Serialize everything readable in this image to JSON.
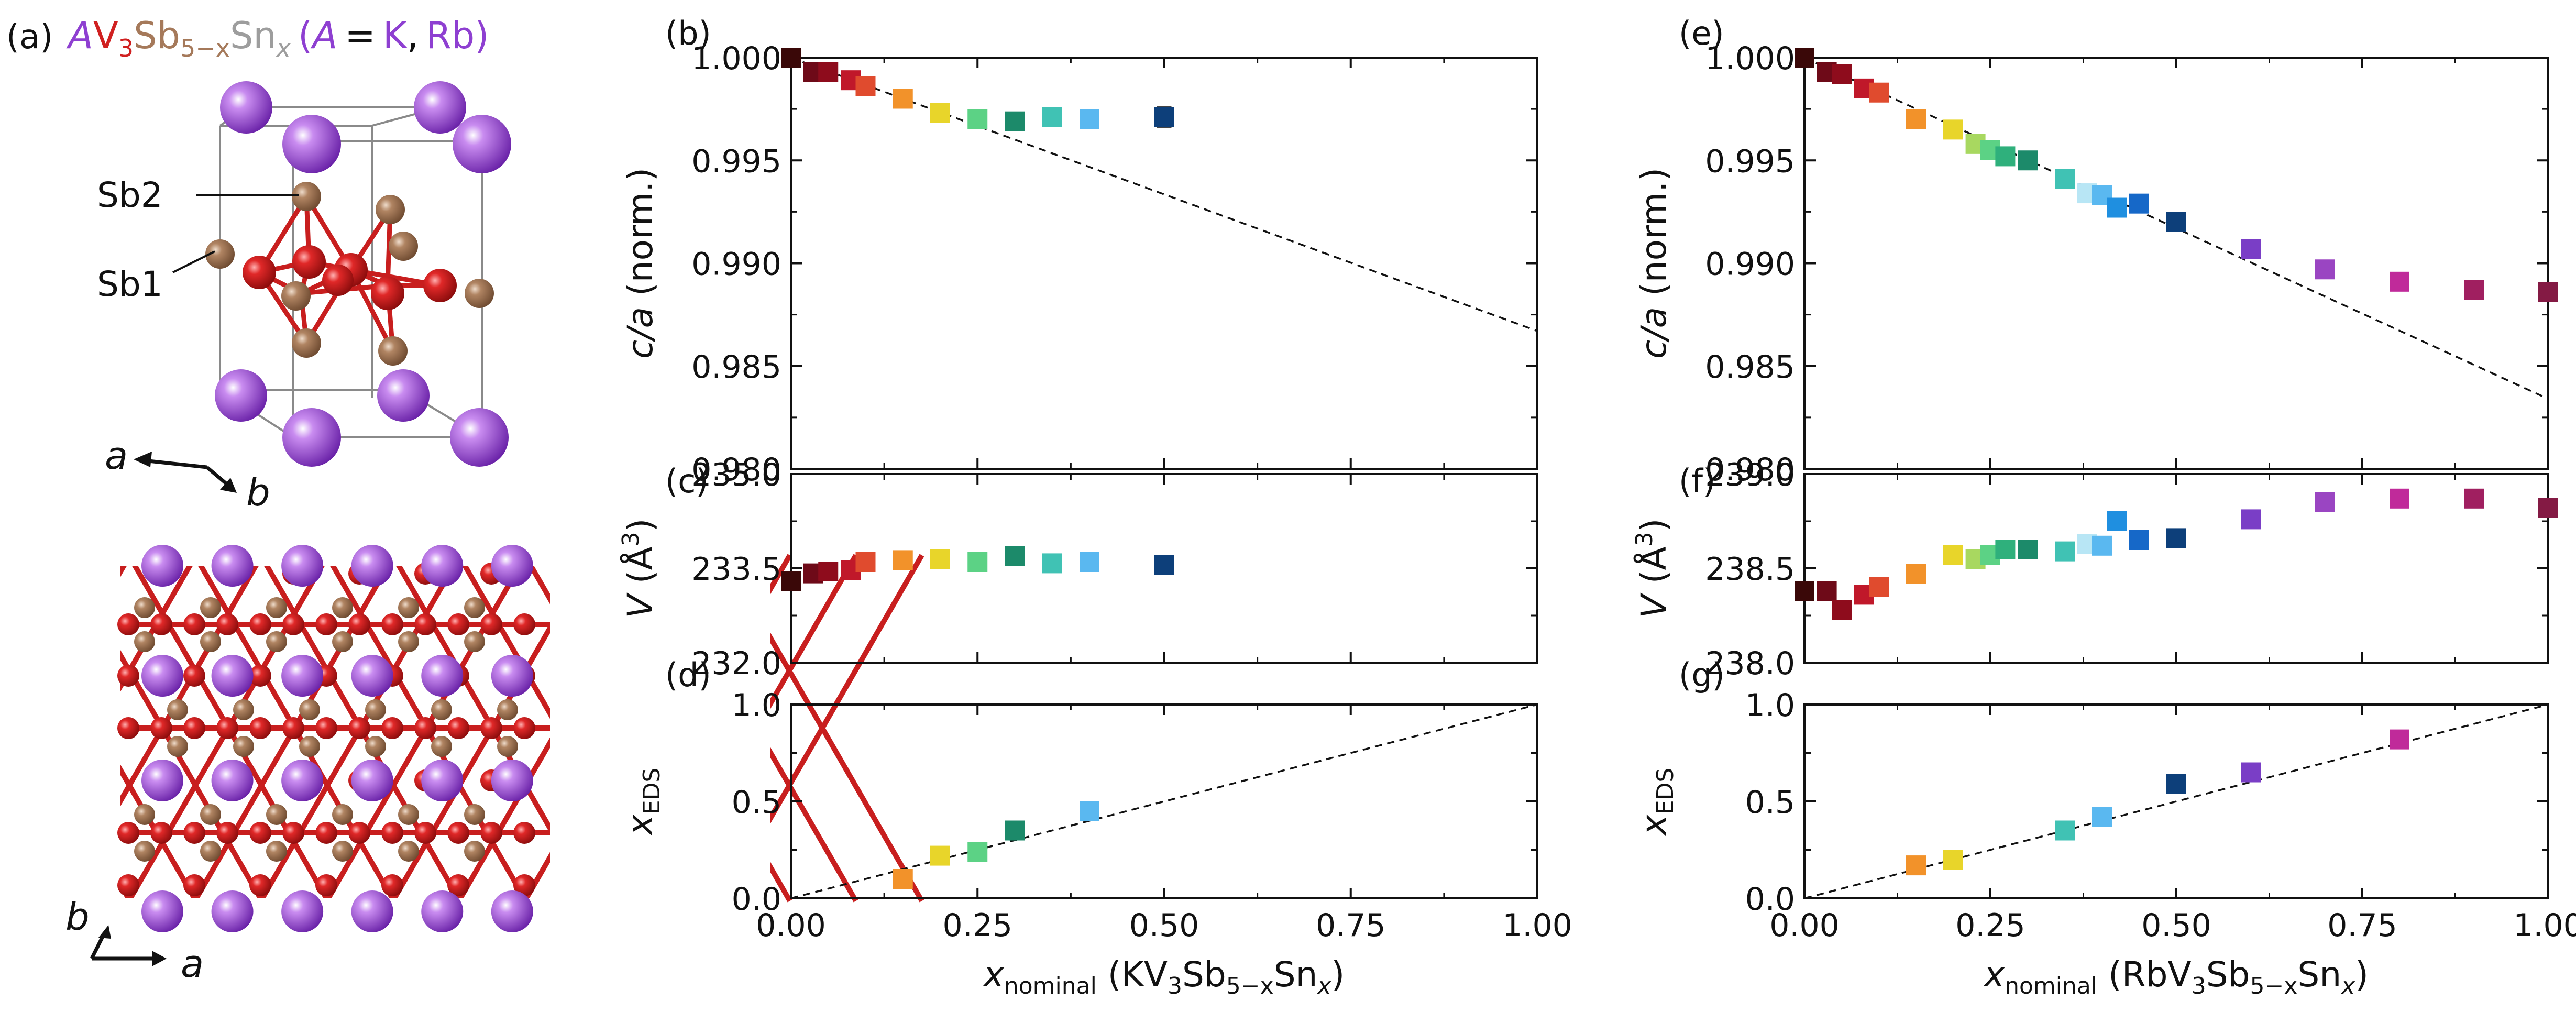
{
  "figure": {
    "colors": {
      "A": "#8e3fd1",
      "V": "#d02020",
      "Sb": "#a5795a",
      "Sn": "#9d9d9d",
      "ink": "#111111"
    },
    "crystal": {
      "panel_label": "(a)",
      "formula": {
        "A": "A",
        "V": "V",
        "v_sub": "3",
        "Sb": "Sb",
        "sb_sub": "5−x",
        "Sn": "Sn",
        "sn_sub": "x",
        "open": "(",
        "a_paren": "A",
        "eq": "=",
        "K": "K",
        "comma": ",",
        "Rb": "Rb",
        "close": ")"
      },
      "site_labels": [
        "Sb2",
        "Sb1"
      ],
      "axes_3d": [
        "a",
        "b"
      ],
      "axes_2d": [
        "b",
        "a"
      ]
    }
  },
  "chart_data": [
    {
      "id": "b",
      "panel_label": "(b)",
      "type": "scatter",
      "ylabel": "c/a (norm.)",
      "xlim": [
        0,
        1.0
      ],
      "ylim": [
        0.98,
        1.0
      ],
      "yticks": [
        "1.000",
        "0.995",
        "0.990",
        "0.985",
        "0.980"
      ],
      "ytick_values": [
        1.0,
        0.995,
        0.99,
        0.985,
        0.98
      ],
      "points": [
        {
          "x": 0.0,
          "y": 1.0,
          "err": 0.0002,
          "color": "#3a0808"
        },
        {
          "x": 0.03,
          "y": 0.9993,
          "err": 0.0003,
          "color": "#6e0a18"
        },
        {
          "x": 0.05,
          "y": 0.9993,
          "err": 0.0003,
          "color": "#8e0c1c"
        },
        {
          "x": 0.08,
          "y": 0.9989,
          "err": 0.0003,
          "color": "#c0182a"
        },
        {
          "x": 0.1,
          "y": 0.9986,
          "err": 0.0003,
          "color": "#e04b2e"
        },
        {
          "x": 0.15,
          "y": 0.998,
          "err": 0.0003,
          "color": "#f2922a"
        },
        {
          "x": 0.2,
          "y": 0.9973,
          "err": 0.0003,
          "color": "#e8d52a"
        },
        {
          "x": 0.25,
          "y": 0.997,
          "err": 0.0003,
          "color": "#5cd285"
        },
        {
          "x": 0.3,
          "y": 0.9969,
          "err": 0.0003,
          "color": "#1c8a6a"
        },
        {
          "x": 0.35,
          "y": 0.9971,
          "err": 0.0004,
          "color": "#40c2b4"
        },
        {
          "x": 0.4,
          "y": 0.997,
          "err": 0.0004,
          "color": "#5ab8f0"
        },
        {
          "x": 0.5,
          "y": 0.9971,
          "err": 0.0005,
          "color": "#0d3f7a"
        }
      ],
      "guide_line": {
        "x0": 0.0,
        "y0": 1.0,
        "x1": 1.0,
        "y1": 0.9867
      }
    },
    {
      "id": "c",
      "panel_label": "(c)",
      "type": "scatter",
      "ylabel": "V (Å³)",
      "ylabel_main": "V",
      "ylabel_unit": " (Å",
      "ylabel_sup": "3",
      "ylabel_close": ")",
      "xlim": [
        0,
        1.0
      ],
      "ylim": [
        232.0,
        235.0
      ],
      "yticks": [
        "235.0",
        "233.5",
        "232.0"
      ],
      "ytick_values": [
        235.0,
        233.5,
        232.0
      ],
      "points": [
        {
          "x": 0.0,
          "y": 233.3,
          "color": "#3a0808"
        },
        {
          "x": 0.03,
          "y": 233.42,
          "color": "#6e0a18"
        },
        {
          "x": 0.05,
          "y": 233.45,
          "color": "#8e0c1c"
        },
        {
          "x": 0.08,
          "y": 233.47,
          "color": "#c0182a"
        },
        {
          "x": 0.1,
          "y": 233.6,
          "color": "#e04b2e"
        },
        {
          "x": 0.15,
          "y": 233.63,
          "color": "#f2922a"
        },
        {
          "x": 0.2,
          "y": 233.65,
          "color": "#e8d52a"
        },
        {
          "x": 0.25,
          "y": 233.6,
          "color": "#5cd285"
        },
        {
          "x": 0.3,
          "y": 233.7,
          "color": "#1c8a6a"
        },
        {
          "x": 0.35,
          "y": 233.58,
          "color": "#40c2b4"
        },
        {
          "x": 0.4,
          "y": 233.6,
          "color": "#5ab8f0"
        },
        {
          "x": 0.5,
          "y": 233.55,
          "color": "#0d3f7a"
        }
      ]
    },
    {
      "id": "d",
      "panel_label": "(d)",
      "type": "scatter",
      "ylabel": "x_EDS",
      "ylabel_main": "x",
      "ylabel_sub": "EDS",
      "xlim": [
        0,
        1.0
      ],
      "ylim": [
        0,
        1.0
      ],
      "yticks": [
        "1.0",
        "0.5",
        "0.0"
      ],
      "ytick_values": [
        1.0,
        0.5,
        0.0
      ],
      "xticks": [
        "0.00",
        "0.25",
        "0.50",
        "0.75",
        "1.00"
      ],
      "xtick_values": [
        0.0,
        0.25,
        0.5,
        0.75,
        1.0
      ],
      "xlabel_main": "x",
      "xlabel_sub": "nominal",
      "xlabel_compound": "(KV",
      "xlabel_sub3": "3",
      "xlabel_sb": "Sb",
      "xlabel_sub5": "5−x",
      "xlabel_sn": "Sn",
      "xlabel_subx": "x",
      "xlabel_close": ")",
      "points": [
        {
          "x": 0.15,
          "y": 0.1,
          "color": "#f2922a"
        },
        {
          "x": 0.2,
          "y": 0.22,
          "color": "#e8d52a"
        },
        {
          "x": 0.25,
          "y": 0.24,
          "color": "#5cd285"
        },
        {
          "x": 0.3,
          "y": 0.35,
          "color": "#1c8a6a"
        },
        {
          "x": 0.4,
          "y": 0.45,
          "color": "#5ab8f0"
        }
      ],
      "guide_line": {
        "x0": 0.0,
        "y0": 0.0,
        "x1": 1.0,
        "y1": 1.0
      }
    },
    {
      "id": "e",
      "panel_label": "(e)",
      "type": "scatter",
      "ylabel": "c/a (norm.)",
      "xlim": [
        0,
        1.0
      ],
      "ylim": [
        0.98,
        1.0
      ],
      "yticks": [
        "1.000",
        "0.995",
        "0.990",
        "0.985",
        "0.980"
      ],
      "ytick_values": [
        1.0,
        0.995,
        0.99,
        0.985,
        0.98
      ],
      "points": [
        {
          "x": 0.0,
          "y": 1.0,
          "err": 0.0002,
          "color": "#3a0808"
        },
        {
          "x": 0.03,
          "y": 0.9993,
          "err": 0.0003,
          "color": "#6e0a18"
        },
        {
          "x": 0.05,
          "y": 0.9992,
          "err": 0.0003,
          "color": "#8e0c1c"
        },
        {
          "x": 0.08,
          "y": 0.9985,
          "err": 0.0003,
          "color": "#c0182a"
        },
        {
          "x": 0.1,
          "y": 0.9983,
          "err": 0.0003,
          "color": "#e04b2e"
        },
        {
          "x": 0.15,
          "y": 0.997,
          "err": 0.0003,
          "color": "#f2922a"
        },
        {
          "x": 0.2,
          "y": 0.9965,
          "err": 0.0003,
          "color": "#e8d52a"
        },
        {
          "x": 0.23,
          "y": 0.9958,
          "err": 0.0003,
          "color": "#a8d860"
        },
        {
          "x": 0.25,
          "y": 0.9955,
          "err": 0.0003,
          "color": "#5cd285"
        },
        {
          "x": 0.27,
          "y": 0.9952,
          "err": 0.0003,
          "color": "#2fb07c"
        },
        {
          "x": 0.3,
          "y": 0.995,
          "err": 0.0003,
          "color": "#1c8a6a"
        },
        {
          "x": 0.35,
          "y": 0.9941,
          "err": 0.0003,
          "color": "#40c2b4"
        },
        {
          "x": 0.38,
          "y": 0.9934,
          "err": 0.0003,
          "color": "#b8e6f5"
        },
        {
          "x": 0.4,
          "y": 0.9933,
          "err": 0.0003,
          "color": "#5ab8f0"
        },
        {
          "x": 0.42,
          "y": 0.9927,
          "err": 0.0003,
          "color": "#1f8fe0"
        },
        {
          "x": 0.45,
          "y": 0.9929,
          "err": 0.0003,
          "color": "#1668c8"
        },
        {
          "x": 0.5,
          "y": 0.992,
          "err": 0.0003,
          "color": "#0d3f7a"
        },
        {
          "x": 0.6,
          "y": 0.9907,
          "err": 0.0003,
          "color": "#7a3ec6"
        },
        {
          "x": 0.7,
          "y": 0.9897,
          "err": 0.0003,
          "color": "#9a45c2"
        },
        {
          "x": 0.8,
          "y": 0.9891,
          "err": 0.0003,
          "color": "#c02a9a"
        },
        {
          "x": 0.9,
          "y": 0.9887,
          "err": 0.0004,
          "color": "#a01f60"
        },
        {
          "x": 1.0,
          "y": 0.9886,
          "err": 0.0004,
          "color": "#841a44"
        }
      ],
      "guide_line": {
        "x0": 0.0,
        "y0": 1.0,
        "x1": 1.0,
        "y1": 0.9834
      }
    },
    {
      "id": "f",
      "panel_label": "(f)",
      "type": "scatter",
      "ylabel": "V (Å³)",
      "ylabel_main": "V",
      "ylabel_unit": " (Å",
      "ylabel_sup": "3",
      "ylabel_close": ")",
      "xlim": [
        0,
        1.0
      ],
      "ylim": [
        238.0,
        239.0
      ],
      "yticks": [
        "239.0",
        "238.5",
        "238.0"
      ],
      "ytick_values": [
        239.0,
        238.5,
        238.0
      ],
      "points": [
        {
          "x": 0.0,
          "y": 238.38,
          "color": "#3a0808"
        },
        {
          "x": 0.03,
          "y": 238.38,
          "color": "#6e0a18"
        },
        {
          "x": 0.05,
          "y": 238.28,
          "color": "#8e0c1c"
        },
        {
          "x": 0.08,
          "y": 238.36,
          "color": "#c0182a"
        },
        {
          "x": 0.1,
          "y": 238.4,
          "color": "#e04b2e"
        },
        {
          "x": 0.15,
          "y": 238.47,
          "color": "#f2922a"
        },
        {
          "x": 0.2,
          "y": 238.57,
          "color": "#e8d52a"
        },
        {
          "x": 0.23,
          "y": 238.55,
          "color": "#a8d860"
        },
        {
          "x": 0.25,
          "y": 238.57,
          "color": "#5cd285"
        },
        {
          "x": 0.27,
          "y": 238.6,
          "color": "#2fb07c"
        },
        {
          "x": 0.3,
          "y": 238.6,
          "color": "#1c8a6a"
        },
        {
          "x": 0.35,
          "y": 238.59,
          "color": "#40c2b4"
        },
        {
          "x": 0.38,
          "y": 238.63,
          "color": "#b8e6f5"
        },
        {
          "x": 0.4,
          "y": 238.62,
          "color": "#5ab8f0"
        },
        {
          "x": 0.42,
          "y": 238.75,
          "color": "#1f8fe0"
        },
        {
          "x": 0.45,
          "y": 238.65,
          "color": "#1668c8"
        },
        {
          "x": 0.5,
          "y": 238.66,
          "color": "#0d3f7a"
        },
        {
          "x": 0.6,
          "y": 238.76,
          "color": "#7a3ec6"
        },
        {
          "x": 0.7,
          "y": 238.85,
          "color": "#9a45c2"
        },
        {
          "x": 0.8,
          "y": 238.87,
          "color": "#c02a9a"
        },
        {
          "x": 0.9,
          "y": 238.87,
          "color": "#a01f60"
        },
        {
          "x": 1.0,
          "y": 238.82,
          "color": "#841a44"
        }
      ]
    },
    {
      "id": "g",
      "panel_label": "(g)",
      "type": "scatter",
      "ylabel": "x_EDS",
      "ylabel_main": "x",
      "ylabel_sub": "EDS",
      "xlim": [
        0,
        1.0
      ],
      "ylim": [
        0,
        1.0
      ],
      "yticks": [
        "1.0",
        "0.5",
        "0.0"
      ],
      "ytick_values": [
        1.0,
        0.5,
        0.0
      ],
      "xticks": [
        "0.00",
        "0.25",
        "0.50",
        "0.75",
        "1.00"
      ],
      "xtick_values": [
        0.0,
        0.25,
        0.5,
        0.75,
        1.0
      ],
      "xlabel_main": "x",
      "xlabel_sub": "nominal",
      "xlabel_compound": "(RbV",
      "xlabel_sub3": "3",
      "xlabel_sb": "Sb",
      "xlabel_sub5": "5−x",
      "xlabel_sn": "Sn",
      "xlabel_subx": "x",
      "xlabel_close": ")",
      "points": [
        {
          "x": 0.15,
          "y": 0.17,
          "color": "#f2922a"
        },
        {
          "x": 0.2,
          "y": 0.2,
          "color": "#e8d52a"
        },
        {
          "x": 0.35,
          "y": 0.35,
          "color": "#40c2b4"
        },
        {
          "x": 0.4,
          "y": 0.42,
          "color": "#5ab8f0"
        },
        {
          "x": 0.5,
          "y": 0.59,
          "color": "#0d3f7a"
        },
        {
          "x": 0.6,
          "y": 0.65,
          "color": "#7a3ec6"
        },
        {
          "x": 0.8,
          "y": 0.82,
          "color": "#c02a9a"
        }
      ],
      "guide_line": {
        "x0": 0.0,
        "y0": 0.0,
        "x1": 1.0,
        "y1": 1.0
      }
    }
  ]
}
